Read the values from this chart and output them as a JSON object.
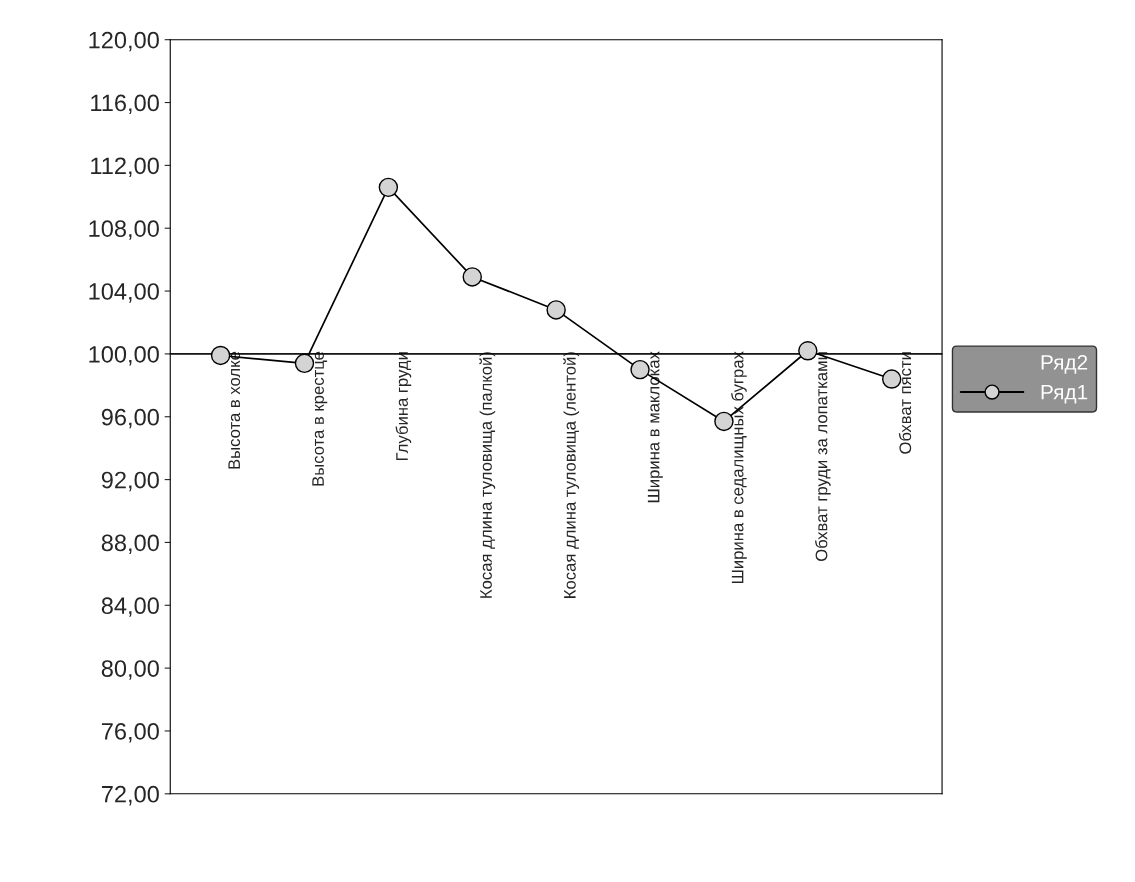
{
  "chart_data": {
    "type": "line",
    "categories": [
      "Высота в холке",
      "Высота в крестце",
      "Глубина груди",
      "Косая длина туловища (палкой)",
      "Косая длина туловища (лентой)",
      "Ширина в маклоках",
      "Ширина в седалищных буграх",
      "Обхват груди за лопатками",
      "Обхват пясти"
    ],
    "series": [
      {
        "name": "Ряд2",
        "values": [
          null,
          null,
          null,
          null,
          null,
          null,
          null,
          null,
          null
        ]
      },
      {
        "name": "Ряд1",
        "color": "#000000",
        "values": [
          99.9,
          99.4,
          110.6,
          104.9,
          102.8,
          99.0,
          95.7,
          100.2,
          98.4
        ]
      }
    ],
    "ylim": [
      72,
      120
    ],
    "yticks": [
      {
        "value": 72,
        "label": "72,00"
      },
      {
        "value": 76,
        "label": "76,00"
      },
      {
        "value": 80,
        "label": "80,00"
      },
      {
        "value": 84,
        "label": "84,00"
      },
      {
        "value": 88,
        "label": "88,00"
      },
      {
        "value": 92,
        "label": "92,00"
      },
      {
        "value": 96,
        "label": "96,00"
      },
      {
        "value": 100,
        "label": "100,00"
      },
      {
        "value": 104,
        "label": "104,00"
      },
      {
        "value": 108,
        "label": "108,00"
      },
      {
        "value": 112,
        "label": "112,00"
      },
      {
        "value": 116,
        "label": "116,00"
      },
      {
        "value": 120,
        "label": "120,00"
      }
    ],
    "ref_lines": [
      {
        "axis": "y",
        "value": 100,
        "color": "#000000"
      }
    ],
    "marker": "circle",
    "line_style": "solid",
    "grid": false,
    "legend": "right"
  }
}
